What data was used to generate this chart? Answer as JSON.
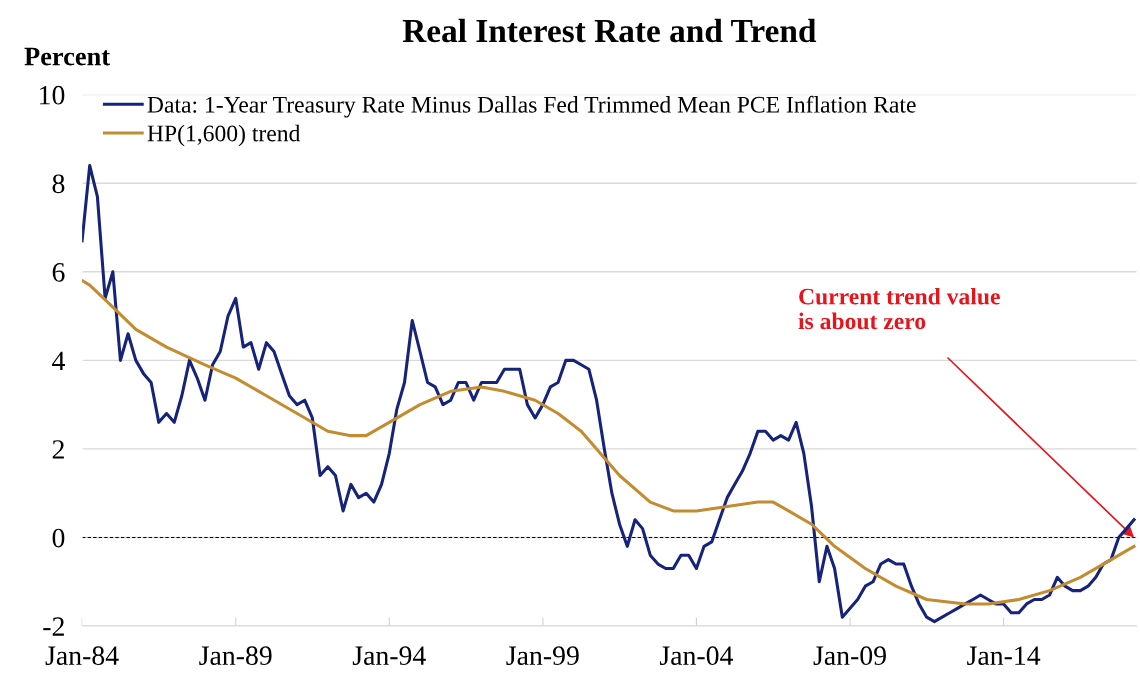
{
  "chart_data": {
    "type": "line",
    "title": "Real Interest Rate and Trend",
    "ylabel": "Percent",
    "x": [
      "1984-01",
      "1984-04",
      "1984-07",
      "1984-10",
      "1985-01",
      "1985-04",
      "1985-07",
      "1985-10",
      "1986-01",
      "1986-04",
      "1986-07",
      "1986-10",
      "1987-01",
      "1987-04",
      "1987-07",
      "1987-10",
      "1988-01",
      "1988-04",
      "1988-07",
      "1988-10",
      "1989-01",
      "1989-04",
      "1989-07",
      "1989-10",
      "1990-01",
      "1990-04",
      "1990-07",
      "1990-10",
      "1991-01",
      "1991-04",
      "1991-07",
      "1991-10",
      "1992-01",
      "1992-04",
      "1992-07",
      "1992-10",
      "1993-01",
      "1993-04",
      "1993-07",
      "1993-10",
      "1994-01",
      "1994-04",
      "1994-07",
      "1994-10",
      "1995-01",
      "1995-04",
      "1995-07",
      "1995-10",
      "1996-01",
      "1996-04",
      "1996-07",
      "1996-10",
      "1997-01",
      "1997-04",
      "1997-07",
      "1997-10",
      "1998-01",
      "1998-04",
      "1998-07",
      "1998-10",
      "1999-01",
      "1999-04",
      "1999-07",
      "1999-10",
      "2000-01",
      "2000-04",
      "2000-07",
      "2000-10",
      "2001-01",
      "2001-04",
      "2001-07",
      "2001-10",
      "2002-01",
      "2002-04",
      "2002-07",
      "2002-10",
      "2003-01",
      "2003-04",
      "2003-07",
      "2003-10",
      "2004-01",
      "2004-04",
      "2004-07",
      "2004-10",
      "2005-01",
      "2005-04",
      "2005-07",
      "2005-10",
      "2006-01",
      "2006-04",
      "2006-07",
      "2006-10",
      "2007-01",
      "2007-04",
      "2007-07",
      "2007-10",
      "2008-01",
      "2008-04",
      "2008-07",
      "2008-10",
      "2009-01",
      "2009-04",
      "2009-07",
      "2009-10",
      "2010-01",
      "2010-04",
      "2010-07",
      "2010-10",
      "2011-01",
      "2011-04",
      "2011-07",
      "2011-10",
      "2012-01",
      "2012-04",
      "2012-07",
      "2012-10",
      "2013-01",
      "2013-04",
      "2013-07",
      "2013-10",
      "2014-01",
      "2014-04",
      "2014-07",
      "2014-10",
      "2015-01",
      "2015-04",
      "2015-07",
      "2015-10",
      "2016-01",
      "2016-04",
      "2016-07",
      "2016-10",
      "2017-01",
      "2017-04",
      "2017-07",
      "2017-10",
      "2018-01",
      "2018-04"
    ],
    "series": [
      {
        "name": "Data: 1-Year Treasury Rate Minus Dallas Fed Trimmed Mean PCE Inflation Rate",
        "color": "#16237a",
        "values": [
          6.7,
          8.4,
          7.7,
          5.4,
          6.0,
          4.0,
          4.6,
          4.0,
          3.7,
          3.5,
          2.6,
          2.8,
          2.6,
          3.2,
          4.0,
          3.6,
          3.1,
          3.9,
          4.2,
          5.0,
          5.4,
          4.3,
          4.4,
          3.8,
          4.4,
          4.2,
          3.7,
          3.2,
          3.0,
          3.1,
          2.7,
          1.4,
          1.6,
          1.4,
          0.6,
          1.2,
          0.9,
          1.0,
          0.8,
          1.2,
          1.9,
          2.9,
          3.5,
          4.9,
          4.2,
          3.5,
          3.4,
          3.0,
          3.1,
          3.5,
          3.5,
          3.1,
          3.5,
          3.5,
          3.5,
          3.8,
          3.8,
          3.8,
          3.0,
          2.7,
          3.0,
          3.4,
          3.5,
          4.0,
          4.0,
          3.9,
          3.8,
          3.1,
          2.0,
          1.0,
          0.3,
          -0.2,
          0.4,
          0.2,
          -0.4,
          -0.6,
          -0.7,
          -0.7,
          -0.4,
          -0.4,
          -0.7,
          -0.2,
          -0.1,
          0.4,
          0.9,
          1.2,
          1.5,
          1.9,
          2.4,
          2.4,
          2.2,
          2.3,
          2.2,
          2.6,
          1.9,
          0.7,
          -1.0,
          -0.2,
          -0.7,
          -1.8,
          -1.6,
          -1.4,
          -1.1,
          -1.0,
          -0.6,
          -0.5,
          -0.6,
          -0.6,
          -1.1,
          -1.5,
          -1.8,
          -1.9,
          -1.8,
          -1.7,
          -1.6,
          -1.5,
          -1.4,
          -1.3,
          -1.4,
          -1.5,
          -1.5,
          -1.7,
          -1.7,
          -1.5,
          -1.4,
          -1.4,
          -1.3,
          -0.9,
          -1.1,
          -1.2,
          -1.2,
          -1.1,
          -0.9,
          -0.6,
          -0.5,
          0.0,
          0.2,
          0.4
        ]
      },
      {
        "name": "HP(1,600) trend",
        "color": "#c38c30",
        "x": [
          "1984-01",
          "1984-04",
          "1985-01",
          "1985-10",
          "1986-10",
          "1988-01",
          "1989-01",
          "1990-01",
          "1991-01",
          "1992-01",
          "1992-10",
          "1993-04",
          "1994-01",
          "1995-01",
          "1996-01",
          "1997-01",
          "1997-10",
          "1998-10",
          "1999-07",
          "2000-04",
          "2000-10",
          "2001-07",
          "2002-07",
          "2003-04",
          "2004-01",
          "2005-01",
          "2006-01",
          "2006-07",
          "2007-01",
          "2007-10",
          "2008-07",
          "2009-07",
          "2010-07",
          "2011-07",
          "2012-10",
          "2013-07",
          "2014-07",
          "2015-07",
          "2016-07",
          "2017-04",
          "2018-04"
        ],
        "values": [
          5.8,
          5.7,
          5.2,
          4.7,
          4.3,
          3.9,
          3.6,
          3.2,
          2.8,
          2.4,
          2.3,
          2.3,
          2.6,
          3.0,
          3.3,
          3.4,
          3.3,
          3.1,
          2.8,
          2.4,
          2.0,
          1.4,
          0.8,
          0.6,
          0.6,
          0.7,
          0.8,
          0.8,
          0.6,
          0.3,
          -0.2,
          -0.7,
          -1.1,
          -1.4,
          -1.5,
          -1.5,
          -1.4,
          -1.2,
          -0.9,
          -0.6,
          -0.2
        ]
      }
    ],
    "xlim": [
      "1984-01",
      "2018-05"
    ],
    "xticks": [
      {
        "value": "1984-01",
        "label": "Jan-84"
      },
      {
        "value": "1989-01",
        "label": "Jan-89"
      },
      {
        "value": "1994-01",
        "label": "Jan-94"
      },
      {
        "value": "1999-01",
        "label": "Jan-99"
      },
      {
        "value": "2004-01",
        "label": "Jan-04"
      },
      {
        "value": "2009-01",
        "label": "Jan-09"
      },
      {
        "value": "2014-01",
        "label": "Jan-14"
      }
    ],
    "ylim": [
      -2,
      10
    ],
    "yticks": [
      -2,
      0,
      2,
      4,
      6,
      8,
      10
    ],
    "grid": "y",
    "legend": "top left",
    "ref_lines": [
      {
        "axis": "y",
        "value": 0,
        "color": "#000000",
        "line_style": "dashed"
      }
    ],
    "annotations": [
      {
        "text": "Current trend value\nis about zero",
        "x": "2018-04",
        "y": 0
      }
    ]
  }
}
